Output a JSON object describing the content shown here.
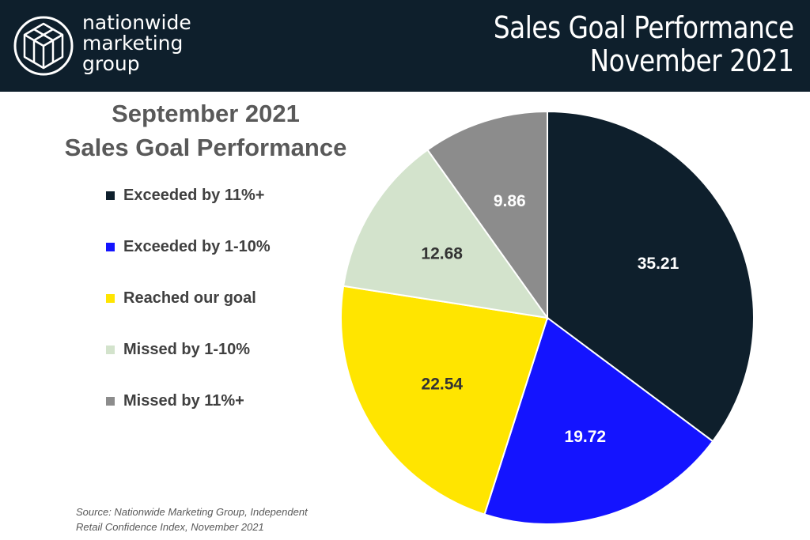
{
  "header": {
    "brand": [
      "nationwide",
      "marketing",
      "group"
    ],
    "title_lines": [
      "Sales Goal Performance",
      "November 2021"
    ],
    "logo_icon": "geometric-cube-logo"
  },
  "chart_data": {
    "type": "pie",
    "title_lines": [
      "September 2021",
      "Sales Goal Performance"
    ],
    "categories": [
      "Exceeded by 11%+",
      "Exceeded by 1-10%",
      "Reached our goal",
      "Missed by 1-10%",
      "Missed by 11%+"
    ],
    "values": [
      35.21,
      19.72,
      22.54,
      12.68,
      9.86
    ],
    "colors": [
      "#0e1f2c",
      "#1414ff",
      "#ffe500",
      "#d3e3cc",
      "#8c8c8c"
    ],
    "label_colors": [
      "#ffffff",
      "#ffffff",
      "#333333",
      "#333333",
      "#ffffff"
    ],
    "start_angle": "12 o'clock",
    "direction": "clockwise",
    "legend_position": "left",
    "data_labels": true
  },
  "source": [
    "Source: Nationwide Marketing Group, Independent",
    "Retail Confidence Index, November 2021"
  ]
}
